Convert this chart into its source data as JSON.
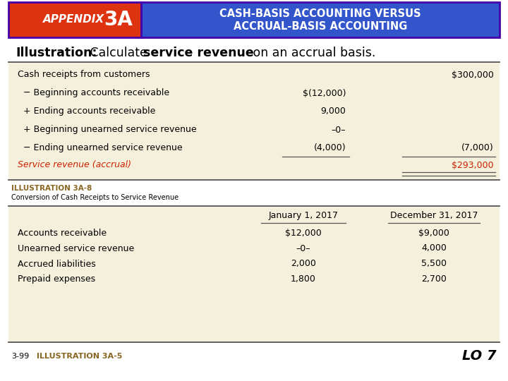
{
  "header_appendix_text": "APPENDIX ",
  "header_appendix_bold": "3A",
  "header_title_line1": "CASH-BASIS ACCOUNTING VERSUS",
  "header_title_line2": "ACCRUAL-BASIS ACCOUNTING",
  "header_red_bg": "#DD3311",
  "header_blue_bg": "#3355CC",
  "header_border": "#4400AA",
  "table1_bg": "#F5F0DC",
  "table1_rows": [
    {
      "label": "Cash receipts from customers",
      "col1": "",
      "col2": "$300,000"
    },
    {
      "label": "  − Beginning accounts receivable",
      "col1": "$(12,000)",
      "col2": ""
    },
    {
      "label": "  + Ending accounts receivable",
      "col1": "9,000",
      "col2": ""
    },
    {
      "label": "  + Beginning unearned service revenue",
      "col1": "–0–",
      "col2": ""
    },
    {
      "label": "  − Ending unearned service revenue",
      "col1": "(4,000)",
      "col2": "(7,000)"
    }
  ],
  "table1_total_label": "Service revenue (accrual)",
  "table1_total_value": "$293,000",
  "table1_total_color": "#CC2200",
  "illus_label": "ILLUSTRATION 3A-8",
  "illus_sublabel": "Conversion of Cash Receipts to Service Revenue",
  "illus_label_color": "#886622",
  "table2_bg": "#F5F0DC",
  "table2_col_headers": [
    "January 1, 2017",
    "December 31, 2017"
  ],
  "table2_rows": [
    {
      "label": "Accounts receivable",
      "col1": "$12,000",
      "col2": "$9,000"
    },
    {
      "label": "Unearned service revenue",
      "col1": "–0–",
      "col2": "4,000"
    },
    {
      "label": "Accrued liabilities",
      "col1": "2,000",
      "col2": "5,500"
    },
    {
      "label": "Prepaid expenses",
      "col1": "1,800",
      "col2": "2,700"
    }
  ],
  "footer_left_num": "3-99",
  "footer_left_label": "ILLUSTRATION 3A-5",
  "footer_right": "LO 7",
  "footer_color": "#886622",
  "bg_color": "#FFFFFF",
  "line_color": "#888888",
  "dark_line_color": "#555555"
}
